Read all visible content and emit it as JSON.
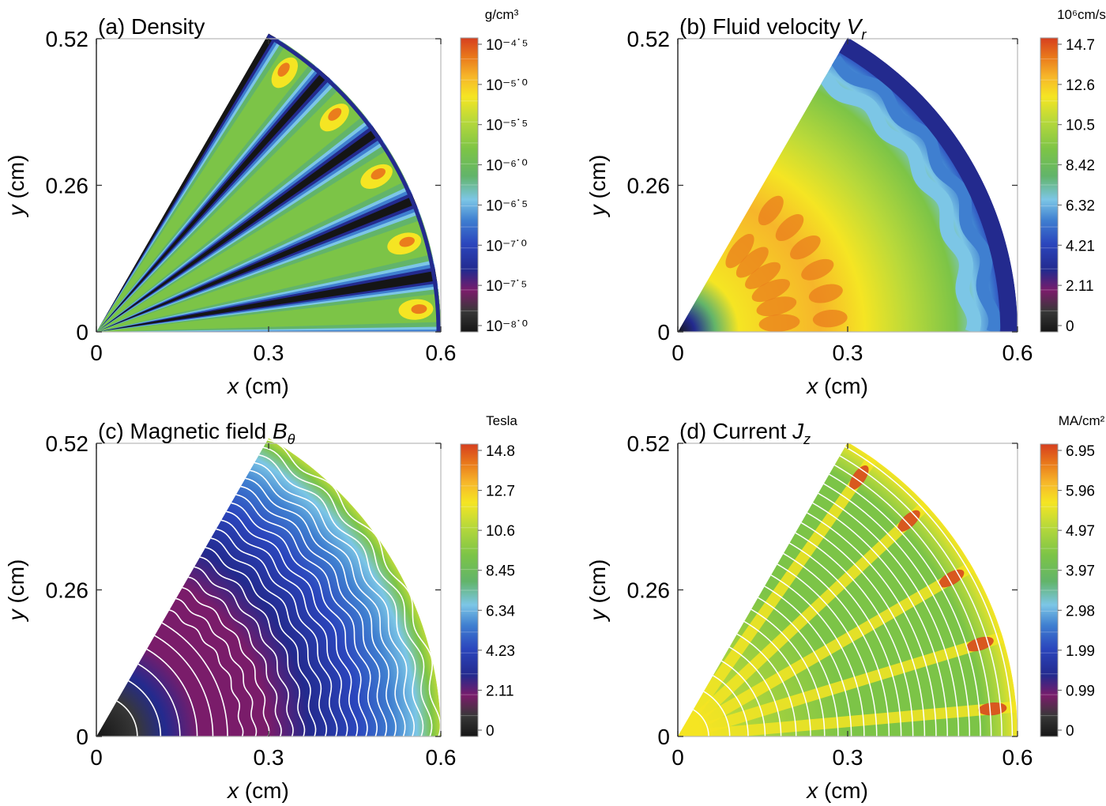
{
  "chart_data": [
    {
      "type": "heatmap",
      "panel": "(a)",
      "title": "(a) Density",
      "xlabel_var": "x",
      "xlabel_unit": " (cm)",
      "ylabel_var": "y",
      "ylabel_unit": " (cm)",
      "xticks": [
        "0",
        "0.3",
        "0.6"
      ],
      "yticks": [
        "0",
        "0.26",
        "0.52"
      ],
      "xlim": [
        0,
        0.6
      ],
      "ylim": [
        0,
        0.52
      ],
      "colorbar_unit": "g/cm³",
      "colorbar_ticks": [
        "10⁻⁴˙⁵",
        "10⁻⁵˙⁰",
        "10⁻⁵˙⁵",
        "10⁻⁶˙⁰",
        "10⁻⁶˙⁵",
        "10⁻⁷˙⁰",
        "10⁻⁷˙⁵",
        "10⁻⁸˙⁰"
      ],
      "colorbar_scale": "log",
      "colorbar_range_log10": [
        -8.0,
        -4.5
      ],
      "features": {
        "spokes": 5,
        "filament_value_log10": -5.7,
        "void_value_log10": -8.0
      }
    },
    {
      "type": "heatmap",
      "panel": "(b)",
      "title_prefix": "(b) Fluid velocity ",
      "title_var": "V",
      "title_sub": "r",
      "xlabel_var": "x",
      "xlabel_unit": " (cm)",
      "ylabel_var": "y",
      "ylabel_unit": " (cm)",
      "xticks": [
        "0",
        "0.3",
        "0.6"
      ],
      "yticks": [
        "0",
        "0.26",
        "0.52"
      ],
      "xlim": [
        0,
        0.6
      ],
      "ylim": [
        0,
        0.52
      ],
      "colorbar_unit": "10⁶cm/s",
      "colorbar_ticks": [
        "14.7",
        "12.6",
        "10.5",
        "8.42",
        "6.32",
        "4.21",
        "2.11",
        "0"
      ],
      "colorbar_range": [
        0,
        14.7
      ]
    },
    {
      "type": "heatmap",
      "panel": "(c)",
      "title_prefix": "(c) Magnetic field ",
      "title_var": "B",
      "title_sub": "θ",
      "xlabel_var": "x",
      "xlabel_unit": " (cm)",
      "ylabel_var": "y",
      "ylabel_unit": " (cm)",
      "xticks": [
        "0",
        "0.3",
        "0.6"
      ],
      "yticks": [
        "0",
        "0.26",
        "0.52"
      ],
      "xlim": [
        0,
        0.6
      ],
      "ylim": [
        0,
        0.52
      ],
      "colorbar_unit": "Tesla",
      "colorbar_ticks": [
        "14.8",
        "12.7",
        "10.6",
        "8.45",
        "6.34",
        "4.23",
        "2.11",
        "0"
      ],
      "colorbar_range": [
        0,
        14.8
      ],
      "features": {
        "contour_lines": "white"
      }
    },
    {
      "type": "heatmap",
      "panel": "(d)",
      "title_prefix": "(d) Current ",
      "title_var": "J",
      "title_sub": "z",
      "xlabel_var": "x",
      "xlabel_unit": " (cm)",
      "ylabel_var": "y",
      "ylabel_unit": " (cm)",
      "xticks": [
        "0",
        "0.3",
        "0.6"
      ],
      "yticks": [
        "0",
        "0.26",
        "0.52"
      ],
      "xlim": [
        0,
        0.6
      ],
      "ylim": [
        0,
        0.52
      ],
      "colorbar_unit": "MA/cm²",
      "colorbar_ticks": [
        "6.95",
        "5.96",
        "4.97",
        "3.97",
        "2.98",
        "1.99",
        "0.99",
        "0"
      ],
      "colorbar_range": [
        0,
        6.95
      ],
      "features": {
        "contour_lines": "white"
      }
    }
  ],
  "colormap": [
    "#151515",
    "#383838",
    "#7a1c6a",
    "#232a8e",
    "#2b46bd",
    "#3f7fd0",
    "#7cc6e6",
    "#62b46a",
    "#7cc447",
    "#b9d93a",
    "#f5e523",
    "#f6b52a",
    "#ea7d1c",
    "#d63f1e"
  ]
}
